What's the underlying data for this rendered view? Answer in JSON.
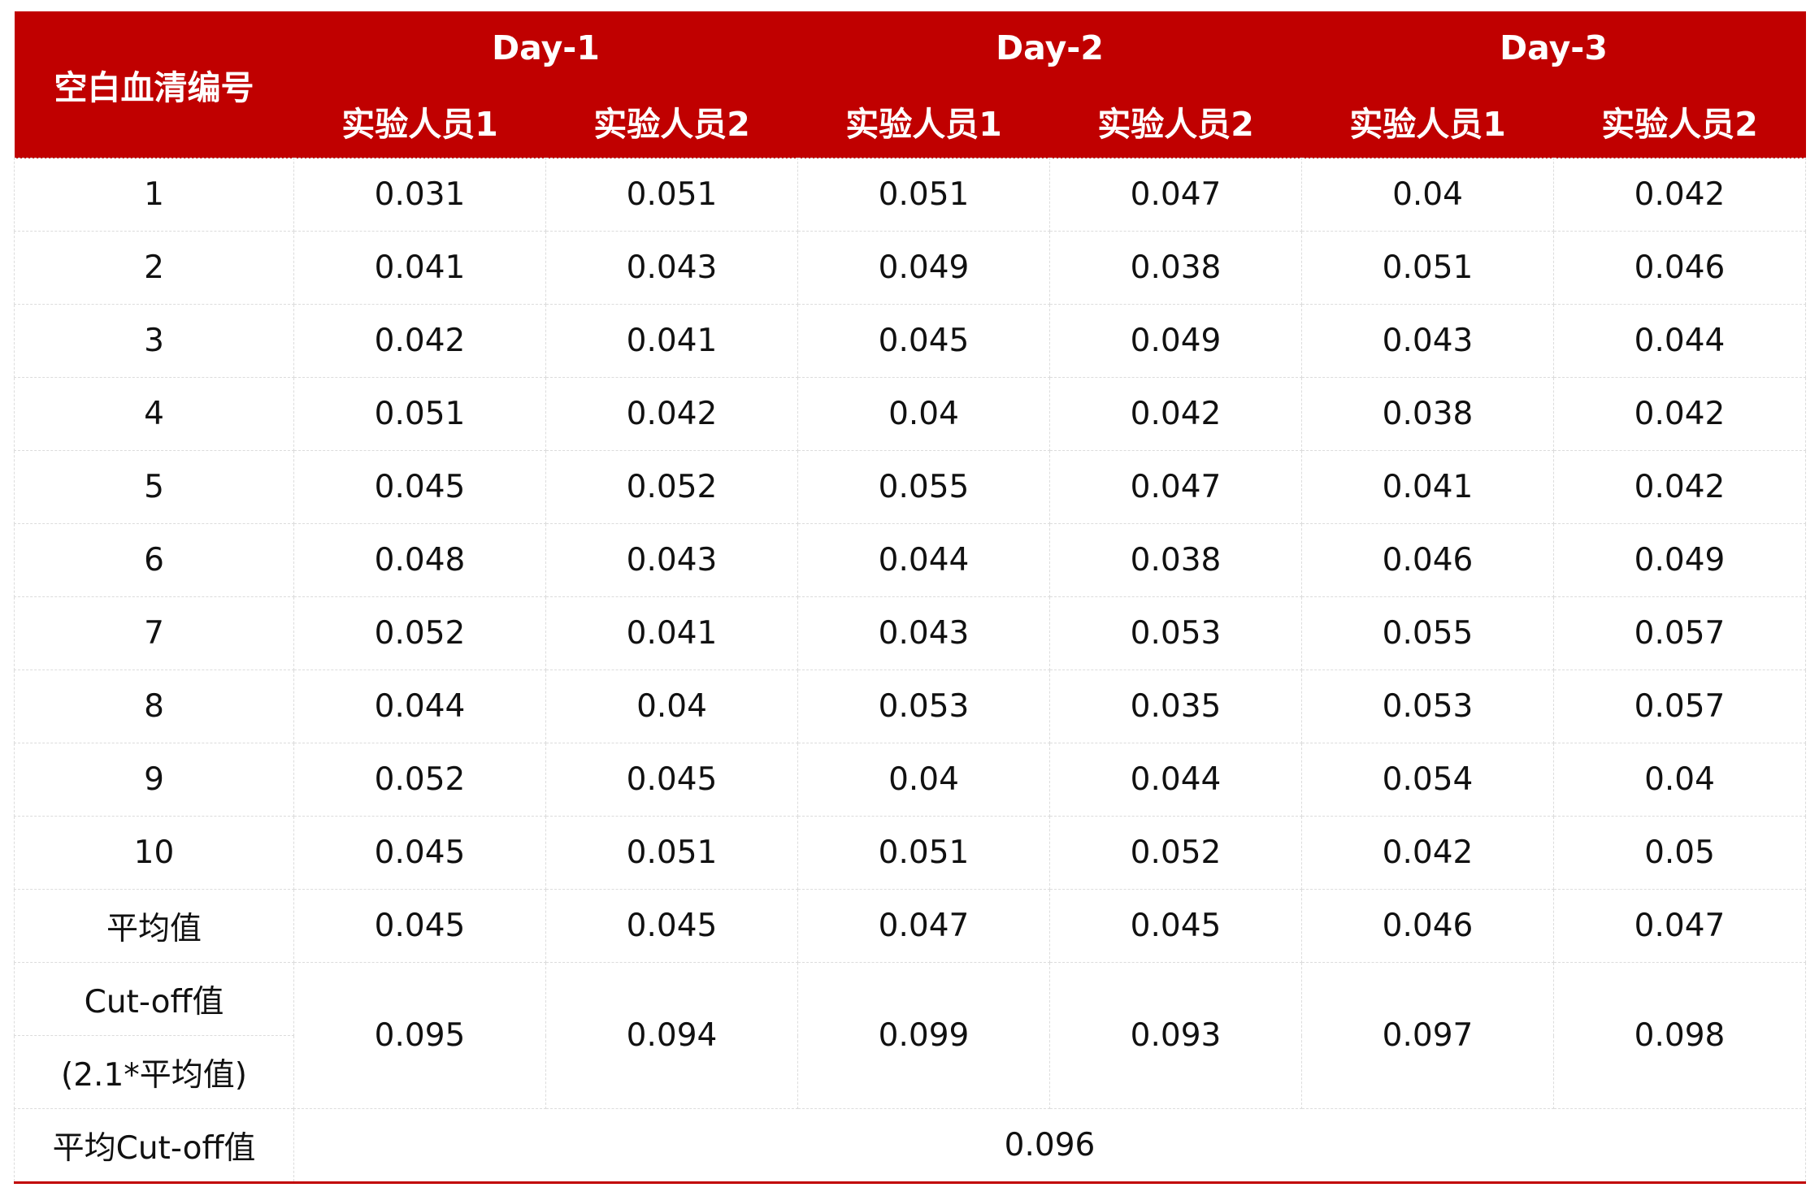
{
  "header": {
    "id_label": "空白血清编号",
    "days": [
      "Day-1",
      "Day-2",
      "Day-3"
    ],
    "staff": [
      "实验人员1",
      "实验人员2",
      "实验人员1",
      "实验人员2",
      "实验人员1",
      "实验人员2"
    ]
  },
  "rows": [
    {
      "id": "1",
      "values": [
        "0.031",
        "0.051",
        "0.051",
        "0.047",
        "0.04",
        "0.042"
      ]
    },
    {
      "id": "2",
      "values": [
        "0.041",
        "0.043",
        "0.049",
        "0.038",
        "0.051",
        "0.046"
      ]
    },
    {
      "id": "3",
      "values": [
        "0.042",
        "0.041",
        "0.045",
        "0.049",
        "0.043",
        "0.044"
      ]
    },
    {
      "id": "4",
      "values": [
        "0.051",
        "0.042",
        "0.04",
        "0.042",
        "0.038",
        "0.042"
      ]
    },
    {
      "id": "5",
      "values": [
        "0.045",
        "0.052",
        "0.055",
        "0.047",
        "0.041",
        "0.042"
      ]
    },
    {
      "id": "6",
      "values": [
        "0.048",
        "0.043",
        "0.044",
        "0.038",
        "0.046",
        "0.049"
      ]
    },
    {
      "id": "7",
      "values": [
        "0.052",
        "0.041",
        "0.043",
        "0.053",
        "0.055",
        "0.057"
      ]
    },
    {
      "id": "8",
      "values": [
        "0.044",
        "0.04",
        "0.053",
        "0.035",
        "0.053",
        "0.057"
      ]
    },
    {
      "id": "9",
      "values": [
        "0.052",
        "0.045",
        "0.04",
        "0.044",
        "0.054",
        "0.04"
      ]
    },
    {
      "id": "10",
      "values": [
        "0.045",
        "0.051",
        "0.051",
        "0.052",
        "0.042",
        "0.05"
      ]
    }
  ],
  "average": {
    "label": "平均值",
    "values": [
      "0.045",
      "0.045",
      "0.047",
      "0.045",
      "0.046",
      "0.047"
    ]
  },
  "cutoff": {
    "label_lines": [
      "Cut-off值",
      "(2.1*平均值)"
    ],
    "values": [
      "0.095",
      "0.094",
      "0.099",
      "0.093",
      "0.097",
      "0.098"
    ]
  },
  "mean_cutoff": {
    "label": "平均Cut-off值",
    "value": "0.096"
  }
}
